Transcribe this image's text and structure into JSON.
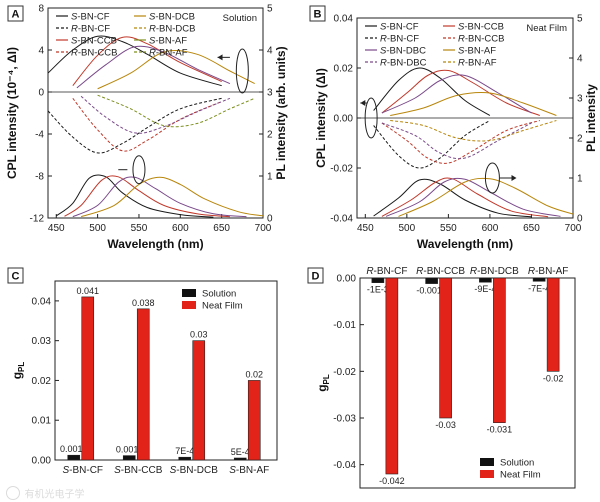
{
  "watermark": "有机光电子学",
  "chart_data": [
    {
      "panel": "A",
      "type": "line",
      "annotation": "Solution",
      "xlabel": "Wavelength (nm)",
      "ylabel": "CPL intensity (10⁻⁴, ΔI)",
      "y2label": "PL intensity (arb. units)",
      "xlim": [
        440,
        700
      ],
      "ylim": [
        -12,
        8
      ],
      "y2lim": [
        0,
        5
      ],
      "xticks": [
        450,
        500,
        550,
        600,
        650,
        700
      ],
      "yticks": [
        -12,
        -8,
        -4,
        0,
        4,
        8
      ],
      "y2ticks": [
        0,
        1,
        2,
        3,
        4,
        5
      ],
      "legend": [
        {
          "prefix": "S",
          "name": "-BN-CF",
          "color": "#1a1a1a",
          "dash": ""
        },
        {
          "prefix": "S",
          "name": "-BN-DCB",
          "color": "#b8860b",
          "dash": ""
        },
        {
          "prefix": "R",
          "name": "-BN-CF",
          "color": "#1a1a1a",
          "dash": "3,2"
        },
        {
          "prefix": "R",
          "name": "-BN-DCB",
          "color": "#b8860b",
          "dash": "3,2"
        },
        {
          "prefix": "S",
          "name": "-BN-CCB",
          "color": "#c0392b",
          "dash": ""
        },
        {
          "prefix": "S",
          "name": "-BN-AF",
          "color": "#7d8f1c",
          "dash": ""
        },
        {
          "prefix": "R",
          "name": "-BN-CCB",
          "color": "#c0392b",
          "dash": "3,2"
        },
        {
          "prefix": "R",
          "name": "-BN-AF",
          "color": "#7d8f1c",
          "dash": "3,2"
        }
      ],
      "cpl_series": [
        {
          "name": "S-BN-CF",
          "axis": "left",
          "color": "#1a1a1a",
          "dash": "",
          "x": [
            440,
            470,
            500,
            530,
            560,
            600,
            650
          ],
          "y": [
            1.8,
            4.0,
            5.3,
            4.8,
            3.6,
            1.8,
            0.6
          ]
        },
        {
          "name": "S-BN-CCB",
          "axis": "left",
          "color": "#c0392b",
          "dash": "",
          "x": [
            470,
            500,
            530,
            560,
            600,
            650
          ],
          "y": [
            0.6,
            3.5,
            5.2,
            4.6,
            2.8,
            1.0
          ]
        },
        {
          "name": "S-BN-DCB",
          "axis": "left",
          "color": "#7a4a8a",
          "dash": "",
          "x": [
            475,
            510,
            545,
            580,
            620,
            660
          ],
          "y": [
            0.4,
            2.6,
            4.3,
            3.8,
            2.2,
            0.8
          ]
        },
        {
          "name": "S-BN-AF",
          "axis": "left",
          "color": "#b8860b",
          "dash": "",
          "x": [
            500,
            540,
            580,
            620,
            660,
            690
          ],
          "y": [
            0.3,
            1.8,
            3.8,
            3.6,
            2.0,
            0.8
          ]
        },
        {
          "name": "R-BN-CF",
          "axis": "left",
          "color": "#1a1a1a",
          "dash": "3,2",
          "x": [
            440,
            470,
            500,
            530,
            560,
            600,
            650
          ],
          "y": [
            -1.8,
            -4.3,
            -5.8,
            -4.9,
            -3.4,
            -1.6,
            -0.6
          ]
        },
        {
          "name": "R-BN-CCB",
          "axis": "left",
          "color": "#c0392b",
          "dash": "3,2",
          "x": [
            470,
            500,
            530,
            560,
            600,
            650
          ],
          "y": [
            -0.6,
            -3.6,
            -5.6,
            -4.6,
            -2.6,
            -0.9
          ]
        },
        {
          "name": "R-BN-DCB",
          "axis": "left",
          "color": "#7a4a8a",
          "dash": "3,2",
          "x": [
            480,
            510,
            545,
            580,
            620,
            660
          ],
          "y": [
            -0.4,
            -2.4,
            -3.9,
            -3.3,
            -1.9,
            -0.6
          ]
        },
        {
          "name": "R-BN-AF",
          "axis": "left",
          "color": "#7d8f1c",
          "dash": "3,2",
          "x": [
            500,
            540,
            580,
            620,
            660,
            690
          ],
          "y": [
            -0.3,
            -1.6,
            -3.2,
            -3.0,
            -1.6,
            -0.6
          ]
        }
      ],
      "pl_series": [
        {
          "name": "BN-CF PL",
          "axis": "right",
          "color": "#1a1a1a",
          "x": [
            450,
            470,
            490,
            510,
            530,
            560,
            600,
            640
          ],
          "y": [
            0.05,
            0.35,
            0.95,
            0.98,
            0.6,
            0.25,
            0.08,
            0.02
          ]
        },
        {
          "name": "BN-CCB PL",
          "axis": "right",
          "color": "#c0392b",
          "x": [
            460,
            480,
            505,
            525,
            550,
            580,
            620,
            660
          ],
          "y": [
            0.04,
            0.3,
            0.9,
            0.98,
            0.65,
            0.3,
            0.1,
            0.03
          ]
        },
        {
          "name": "BN-DCB PL",
          "axis": "right",
          "color": "#7a4a8a",
          "x": [
            470,
            500,
            525,
            545,
            570,
            600,
            640,
            680
          ],
          "y": [
            0.03,
            0.3,
            0.85,
            0.97,
            0.7,
            0.35,
            0.1,
            0.03
          ]
        },
        {
          "name": "BN-AF PL",
          "axis": "right",
          "color": "#b8860b",
          "x": [
            480,
            520,
            550,
            575,
            600,
            630,
            670,
            700
          ],
          "y": [
            0.03,
            0.3,
            0.8,
            0.97,
            0.8,
            0.45,
            0.15,
            0.05
          ]
        }
      ],
      "arrow": "right-axis"
    },
    {
      "panel": "B",
      "type": "line",
      "annotation": "Neat Film",
      "xlabel": "Wavelength (nm)",
      "ylabel": "CPL intensity (ΔI)",
      "y2label": "PL intensity",
      "xlim": [
        440,
        700
      ],
      "ylim": [
        -0.04,
        0.04
      ],
      "y2lim": [
        0,
        5
      ],
      "xticks": [
        450,
        500,
        550,
        600,
        650,
        700
      ],
      "yticks": [
        -0.04,
        -0.02,
        0.0,
        0.02,
        0.04
      ],
      "yticklabels": [
        "-0.04",
        "-0.02",
        "0.00",
        "0.02",
        "0.04"
      ],
      "y2ticks": [
        0,
        1,
        2,
        3,
        4,
        5
      ],
      "legend": [
        {
          "prefix": "S",
          "name": "-BN-CF",
          "color": "#1a1a1a",
          "dash": ""
        },
        {
          "prefix": "S",
          "name": "-BN-CCB",
          "color": "#c0392b",
          "dash": ""
        },
        {
          "prefix": "R",
          "name": "-BN-CF",
          "color": "#1a1a1a",
          "dash": "3,2"
        },
        {
          "prefix": "R",
          "name": "-BN-CCB",
          "color": "#c0392b",
          "dash": "3,2"
        },
        {
          "prefix": "S",
          "name": "-BN-DBC",
          "color": "#7a4a8a",
          "dash": ""
        },
        {
          "prefix": "S",
          "name": "-BN-AF",
          "color": "#b8860b",
          "dash": ""
        },
        {
          "prefix": "R",
          "name": "-BN-DBC",
          "color": "#7a4a8a",
          "dash": "3,2"
        },
        {
          "prefix": "R",
          "name": "-BN-AF",
          "color": "#b8860b",
          "dash": "3,2"
        }
      ],
      "cpl_series": [
        {
          "name": "S-BN-CF",
          "axis": "left",
          "color": "#1a1a1a",
          "dash": "",
          "x": [
            460,
            490,
            515,
            540,
            570,
            600
          ],
          "y": [
            0.003,
            0.015,
            0.02,
            0.016,
            0.007,
            0.001
          ]
        },
        {
          "name": "S-BN-CCB",
          "axis": "left",
          "color": "#c0392b",
          "dash": "",
          "x": [
            470,
            500,
            525,
            550,
            580,
            620,
            660
          ],
          "y": [
            0.002,
            0.01,
            0.017,
            0.019,
            0.014,
            0.006,
            0.001
          ]
        },
        {
          "name": "S-BN-DBC",
          "axis": "left",
          "color": "#7a4a8a",
          "dash": "",
          "x": [
            470,
            510,
            540,
            570,
            610,
            650
          ],
          "y": [
            0.002,
            0.008,
            0.015,
            0.017,
            0.01,
            0.002
          ]
        },
        {
          "name": "S-BN-AF",
          "axis": "left",
          "color": "#b8860b",
          "dash": "",
          "x": [
            480,
            520,
            560,
            600,
            640,
            680
          ],
          "y": [
            0.001,
            0.004,
            0.009,
            0.01,
            0.006,
            0.001
          ]
        },
        {
          "name": "R-BN-CF",
          "axis": "left",
          "color": "#1a1a1a",
          "dash": "3,2",
          "x": [
            460,
            490,
            515,
            540,
            570,
            600
          ],
          "y": [
            -0.003,
            -0.015,
            -0.02,
            -0.016,
            -0.007,
            -0.001
          ]
        },
        {
          "name": "R-BN-CCB",
          "axis": "left",
          "color": "#c0392b",
          "dash": "3,2",
          "x": [
            470,
            500,
            525,
            550,
            580,
            620,
            660
          ],
          "y": [
            -0.002,
            -0.009,
            -0.016,
            -0.018,
            -0.013,
            -0.005,
            -0.001
          ]
        },
        {
          "name": "R-BN-DBC",
          "axis": "left",
          "color": "#7a4a8a",
          "dash": "3,2",
          "x": [
            470,
            510,
            540,
            570,
            610,
            650
          ],
          "y": [
            -0.002,
            -0.007,
            -0.014,
            -0.016,
            -0.009,
            -0.002
          ]
        },
        {
          "name": "R-BN-AF",
          "axis": "left",
          "color": "#b8860b",
          "dash": "3,2",
          "x": [
            480,
            520,
            560,
            600,
            640,
            680
          ],
          "y": [
            -0.001,
            -0.003,
            -0.008,
            -0.009,
            -0.005,
            -0.001
          ]
        }
      ],
      "pl_series": [
        {
          "name": "BN-CF PL",
          "axis": "right",
          "color": "#1a1a1a",
          "x": [
            460,
            490,
            515,
            540,
            570,
            610,
            650
          ],
          "y": [
            0.05,
            0.5,
            0.95,
            0.85,
            0.45,
            0.12,
            0.03
          ]
        },
        {
          "name": "BN-CCB PL",
          "axis": "right",
          "color": "#c0392b",
          "x": [
            470,
            505,
            535,
            555,
            585,
            625,
            670
          ],
          "y": [
            0.04,
            0.45,
            0.9,
            0.98,
            0.6,
            0.18,
            0.03
          ]
        },
        {
          "name": "BN-DBC PL",
          "axis": "right",
          "color": "#7a4a8a",
          "x": [
            475,
            515,
            545,
            570,
            600,
            640,
            685
          ],
          "y": [
            0.04,
            0.4,
            0.9,
            0.97,
            0.65,
            0.22,
            0.04
          ]
        },
        {
          "name": "BN-AF PL",
          "axis": "right",
          "color": "#b8860b",
          "x": [
            490,
            530,
            570,
            600,
            630,
            670,
            700
          ],
          "y": [
            0.04,
            0.4,
            0.9,
            0.98,
            0.75,
            0.3,
            0.1
          ]
        }
      ],
      "arrow": "both"
    },
    {
      "panel": "C",
      "type": "bar",
      "ylabel": "g",
      "ylabel_sub": "PL",
      "ylim": [
        0,
        0.045
      ],
      "yticks": [
        0.0,
        0.01,
        0.02,
        0.03,
        0.04
      ],
      "yticklabels": [
        "0.00",
        "0.01",
        "0.02",
        "0.03",
        "0.04"
      ],
      "categories_prefix": [
        "S",
        "S",
        "S",
        "S"
      ],
      "categories": [
        "-BN-CF",
        "-BN-CCB",
        "-BN-DCB",
        "-BN-AF"
      ],
      "series": [
        {
          "name": "Solution",
          "color": "#111111",
          "values": [
            0.0012,
            0.0011,
            0.0007,
            0.0005
          ],
          "labels": [
            "0.0012",
            "0.0011",
            "7E-4",
            "5E-4"
          ]
        },
        {
          "name": "Neat Film",
          "color": "#e2231a",
          "values": [
            0.041,
            0.038,
            0.03,
            0.02
          ],
          "labels": [
            "0.041",
            "0.038",
            "0.03",
            "0.02"
          ]
        }
      ],
      "legend_position": "top-right"
    },
    {
      "panel": "D",
      "type": "bar",
      "ylabel": "g",
      "ylabel_sub": "PL",
      "ylim": [
        -0.045,
        0
      ],
      "yticks": [
        -0.04,
        -0.03,
        -0.02,
        -0.01,
        0.0
      ],
      "yticklabels": [
        "-0.04",
        "-0.03",
        "-0.02",
        "-0.01",
        "0.00"
      ],
      "categories_prefix": [
        "R",
        "R",
        "R",
        "R"
      ],
      "categories": [
        "-BN-CF",
        "-BN-CCB",
        "-BN-DCB",
        "-BN-AF"
      ],
      "series": [
        {
          "name": "Solution",
          "color": "#111111",
          "values": [
            -0.001,
            -0.0012,
            -0.0009,
            -0.0007
          ],
          "labels": [
            "-1E-3",
            "-0.0012",
            "-9E-4",
            "-7E-4"
          ]
        },
        {
          "name": "Neat Film",
          "color": "#e2231a",
          "values": [
            -0.042,
            -0.03,
            -0.031,
            -0.02
          ],
          "labels": [
            "-0.042",
            "-0.03",
            "-0.031",
            "-0.02"
          ]
        }
      ],
      "legend_position": "bottom-right"
    }
  ]
}
